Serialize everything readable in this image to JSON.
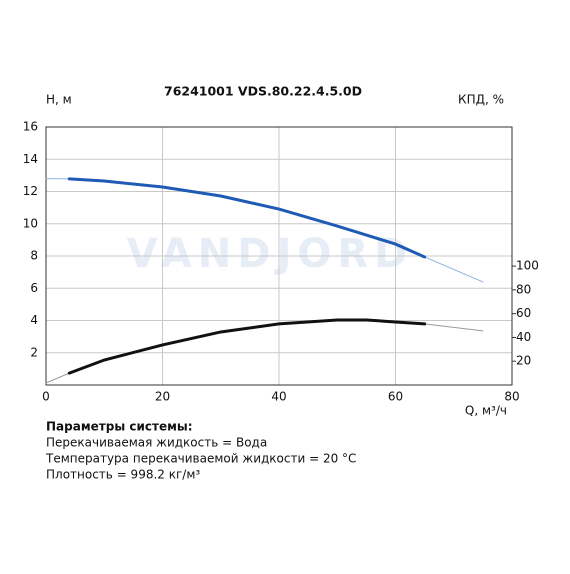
{
  "chart_data": {
    "type": "line",
    "title": "76241001 VDS.80.22.4.5.0D",
    "ylabel": "H, м",
    "y2label": "КПД, %",
    "xlabel": "Q, м³/ч",
    "watermark": "VANDJORD",
    "x": [
      0,
      4,
      10,
      20,
      30,
      40,
      50,
      55,
      60,
      65,
      75
    ],
    "operating_range": [
      4,
      65
    ],
    "series": [
      {
        "color": "#1f5bb5",
        "thin_color": "#8fb0e0",
        "values": [
          12.8,
          12.78,
          12.65,
          12.28,
          11.72,
          10.91,
          9.86,
          9.3,
          8.74,
          7.94,
          6.39
        ]
      },
      {
        "color": "#111111",
        "thin_color": "#9a9a9a",
        "axis": "y2",
        "values": [
          1.7,
          10,
          21,
          33.7,
          44.6,
          51.4,
          54.7,
          54.7,
          53,
          51.4,
          45.5
        ]
      }
    ],
    "xlim": [
      0,
      80
    ],
    "xticks": [
      0,
      20,
      40,
      60,
      80
    ],
    "ylim": [
      0,
      16
    ],
    "yticks": [
      2,
      4,
      6,
      8,
      10,
      12,
      14,
      16
    ],
    "y2lim": [
      0,
      217
    ],
    "y2ticks": [
      20,
      40,
      60,
      80,
      100
    ],
    "grid": true
  },
  "parameters": {
    "heading": "Параметры системы:",
    "lines": [
      "Перекачиваемая жидкость = Вода",
      "Температура перекачиваемой жидкости = 20 °C",
      "Плотность = 998.2 кг/м³"
    ]
  }
}
